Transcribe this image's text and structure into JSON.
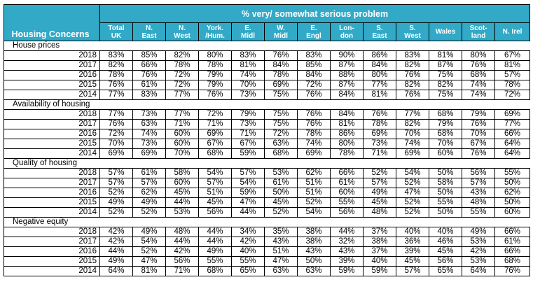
{
  "header": {
    "corner_label": "Housing Concerns",
    "group_title": "% very/ somewhat serious problem",
    "columns": [
      [
        "Total",
        "UK"
      ],
      [
        "N.",
        "East"
      ],
      [
        "N.",
        "West"
      ],
      [
        "York.",
        "/Hum."
      ],
      [
        "E.",
        "Midl"
      ],
      [
        "W.",
        "Midl"
      ],
      [
        "E.",
        "Engl"
      ],
      [
        "Lon-",
        "don"
      ],
      [
        "S.",
        "East"
      ],
      [
        "S.",
        "West"
      ],
      [
        "Wales",
        ""
      ],
      [
        "Scot-",
        "land"
      ],
      [
        "N. Irel",
        ""
      ]
    ]
  },
  "sections": [
    {
      "title": "House prices",
      "rows": [
        {
          "year": "2018",
          "values": [
            "83%",
            "85%",
            "82%",
            "80%",
            "83%",
            "76%",
            "83%",
            "90%",
            "86%",
            "83%",
            "81%",
            "80%",
            "67%"
          ]
        },
        {
          "year": "2017",
          "values": [
            "82%",
            "66%",
            "78%",
            "78%",
            "81%",
            "84%",
            "85%",
            "87%",
            "84%",
            "82%",
            "87%",
            "76%",
            "81%"
          ]
        },
        {
          "year": "2016",
          "values": [
            "78%",
            "76%",
            "72%",
            "79%",
            "74%",
            "78%",
            "84%",
            "88%",
            "80%",
            "76%",
            "75%",
            "68%",
            "57%"
          ]
        },
        {
          "year": "2015",
          "values": [
            "76%",
            "61%",
            "72%",
            "79%",
            "70%",
            "69%",
            "72%",
            "87%",
            "77%",
            "82%",
            "82%",
            "74%",
            "78%"
          ]
        },
        {
          "year": "2014",
          "values": [
            "77%",
            "83%",
            "77%",
            "76%",
            "73%",
            "75%",
            "76%",
            "84%",
            "81%",
            "76%",
            "75%",
            "74%",
            "72%"
          ]
        }
      ]
    },
    {
      "title": "Availability of housing",
      "rows": [
        {
          "year": "2018",
          "values": [
            "77%",
            "73%",
            "77%",
            "72%",
            "79%",
            "75%",
            "76%",
            "84%",
            "76%",
            "77%",
            "68%",
            "79%",
            "69%"
          ]
        },
        {
          "year": "2017",
          "values": [
            "76%",
            "63%",
            "71%",
            "71%",
            "73%",
            "75%",
            "76%",
            "81%",
            "78%",
            "82%",
            "79%",
            "76%",
            "77%"
          ]
        },
        {
          "year": "2016",
          "values": [
            "72%",
            "74%",
            "60%",
            "69%",
            "71%",
            "72%",
            "78%",
            "86%",
            "69%",
            "70%",
            "68%",
            "70%",
            "66%"
          ]
        },
        {
          "year": "2015",
          "values": [
            "70%",
            "73%",
            "60%",
            "67%",
            "67%",
            "63%",
            "74%",
            "80%",
            "73%",
            "74%",
            "70%",
            "67%",
            "64%"
          ]
        },
        {
          "year": "2014",
          "values": [
            "69%",
            "69%",
            "70%",
            "68%",
            "59%",
            "68%",
            "69%",
            "78%",
            "71%",
            "69%",
            "60%",
            "76%",
            "64%"
          ]
        }
      ]
    },
    {
      "title": "Quality of housing",
      "rows": [
        {
          "year": "2018",
          "values": [
            "57%",
            "61%",
            "58%",
            "54%",
            "57%",
            "53%",
            "62%",
            "66%",
            "52%",
            "54%",
            "50%",
            "56%",
            "55%"
          ]
        },
        {
          "year": "2017",
          "values": [
            "57%",
            "57%",
            "60%",
            "57%",
            "54%",
            "61%",
            "51%",
            "61%",
            "57%",
            "52%",
            "58%",
            "57%",
            "50%"
          ]
        },
        {
          "year": "2016",
          "values": [
            "52%",
            "62%",
            "45%",
            "51%",
            "59%",
            "50%",
            "51%",
            "60%",
            "49%",
            "47%",
            "50%",
            "43%",
            "62%"
          ]
        },
        {
          "year": "2015",
          "values": [
            "49%",
            "49%",
            "44%",
            "45%",
            "47%",
            "45%",
            "52%",
            "55%",
            "45%",
            "52%",
            "55%",
            "48%",
            "50%"
          ]
        },
        {
          "year": "2014",
          "values": [
            "52%",
            "52%",
            "53%",
            "56%",
            "44%",
            "52%",
            "54%",
            "56%",
            "48%",
            "52%",
            "50%",
            "55%",
            "60%"
          ]
        }
      ]
    },
    {
      "title": "Negative equity",
      "rows": [
        {
          "year": "2018",
          "values": [
            "42%",
            "49%",
            "48%",
            "44%",
            "34%",
            "35%",
            "38%",
            "44%",
            "37%",
            "40%",
            "40%",
            "49%",
            "66%"
          ]
        },
        {
          "year": "2017",
          "values": [
            "42%",
            "54%",
            "44%",
            "44%",
            "42%",
            "43%",
            "38%",
            "32%",
            "38%",
            "36%",
            "46%",
            "53%",
            "61%"
          ]
        },
        {
          "year": "2016",
          "values": [
            "44%",
            "52%",
            "42%",
            "49%",
            "40%",
            "51%",
            "43%",
            "43%",
            "37%",
            "39%",
            "45%",
            "42%",
            "66%"
          ]
        },
        {
          "year": "2015",
          "values": [
            "49%",
            "47%",
            "56%",
            "55%",
            "55%",
            "47%",
            "50%",
            "39%",
            "40%",
            "45%",
            "56%",
            "53%",
            "68%"
          ]
        },
        {
          "year": "2014",
          "values": [
            "64%",
            "81%",
            "71%",
            "68%",
            "65%",
            "63%",
            "63%",
            "59%",
            "59%",
            "57%",
            "65%",
            "64%",
            "76%"
          ]
        }
      ]
    }
  ]
}
